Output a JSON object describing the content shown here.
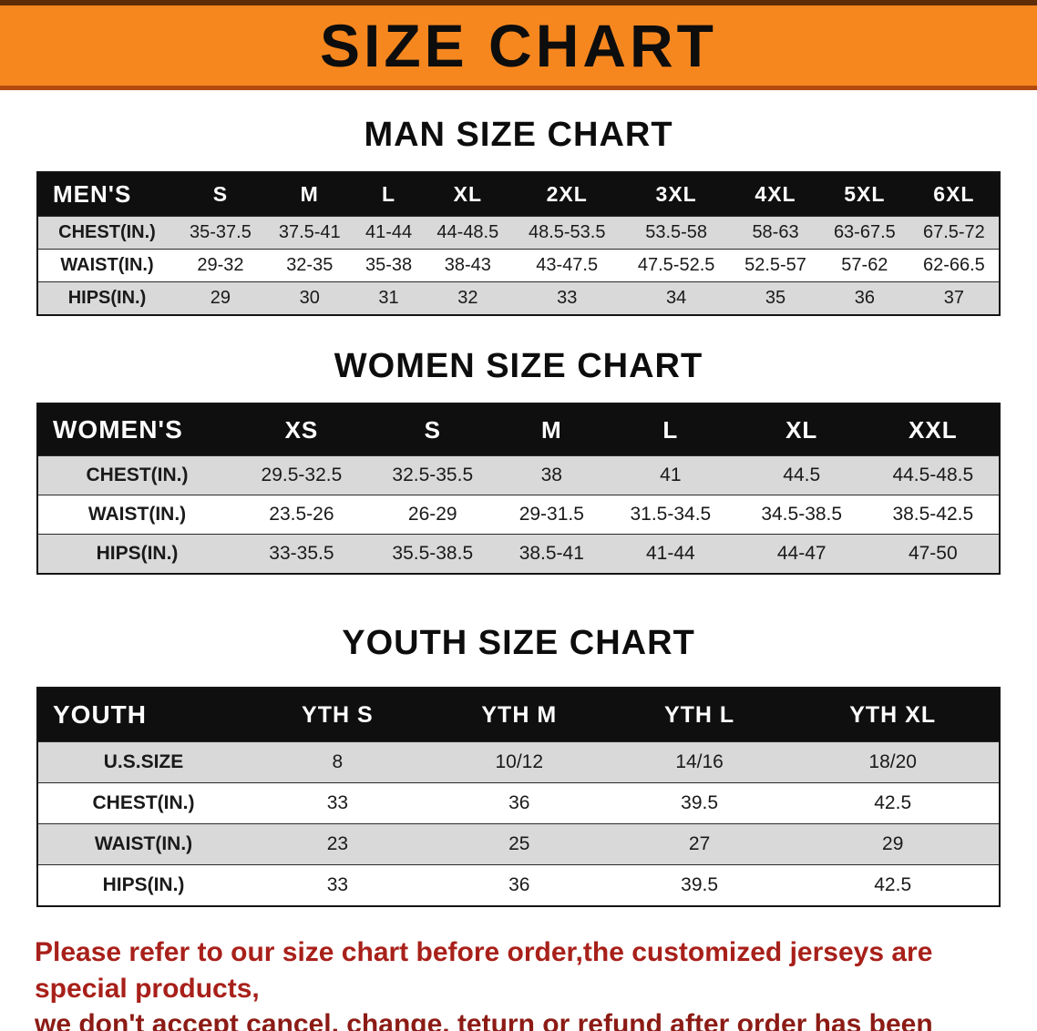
{
  "banner": {
    "title": "SIZE CHART"
  },
  "colors": {
    "banner_orange": "#f6871f",
    "header_black": "#0f0f0f",
    "stripe_gray": "#d9d9d9",
    "note_red": "#a8201a"
  },
  "men": {
    "heading": "MAN SIZE CHART",
    "header": [
      "MEN'S",
      "S",
      "M",
      "L",
      "XL",
      "2XL",
      "3XL",
      "4XL",
      "5XL",
      "6XL"
    ],
    "rows": [
      {
        "label": "CHEST(IN.)",
        "values": [
          "35-37.5",
          "37.5-41",
          "41-44",
          "44-48.5",
          "48.5-53.5",
          "53.5-58",
          "58-63",
          "63-67.5",
          "67.5-72"
        ]
      },
      {
        "label": "WAIST(IN.)",
        "values": [
          "29-32",
          "32-35",
          "35-38",
          "38-43",
          "43-47.5",
          "47.5-52.5",
          "52.5-57",
          "57-62",
          "62-66.5"
        ]
      },
      {
        "label": "HIPS(IN.)",
        "values": [
          "29",
          "30",
          "31",
          "32",
          "33",
          "34",
          "35",
          "36",
          "37"
        ]
      }
    ]
  },
  "women": {
    "heading": "WOMEN SIZE CHART",
    "header": [
      "WOMEN'S",
      "XS",
      "S",
      "M",
      "L",
      "XL",
      "XXL"
    ],
    "rows": [
      {
        "label": "CHEST(IN.)",
        "values": [
          "29.5-32.5",
          "32.5-35.5",
          "38",
          "41",
          "44.5",
          "44.5-48.5"
        ]
      },
      {
        "label": "WAIST(IN.)",
        "values": [
          "23.5-26",
          "26-29",
          "29-31.5",
          "31.5-34.5",
          "34.5-38.5",
          "38.5-42.5"
        ]
      },
      {
        "label": "HIPS(IN.)",
        "values": [
          "33-35.5",
          "35.5-38.5",
          "38.5-41",
          "41-44",
          "44-47",
          "47-50"
        ]
      }
    ]
  },
  "youth": {
    "heading": "YOUTH SIZE CHART",
    "header": [
      "YOUTH",
      "YTH S",
      "YTH M",
      "YTH L",
      "YTH XL"
    ],
    "rows": [
      {
        "label": "U.S.SIZE",
        "values": [
          "8",
          "10/12",
          "14/16",
          "18/20"
        ]
      },
      {
        "label": "CHEST(IN.)",
        "values": [
          "33",
          "36",
          "39.5",
          "42.5"
        ]
      },
      {
        "label": "WAIST(IN.)",
        "values": [
          "23",
          "25",
          "27",
          "29"
        ]
      },
      {
        "label": "HIPS(IN.)",
        "values": [
          "33",
          "36",
          "39.5",
          "42.5"
        ]
      }
    ]
  },
  "footer": {
    "line1": "Please refer to our size chart before order,the customized jerseys are special products,",
    "line2": "we don't accept cancel, change, teturn or refund after order has been placed!"
  }
}
